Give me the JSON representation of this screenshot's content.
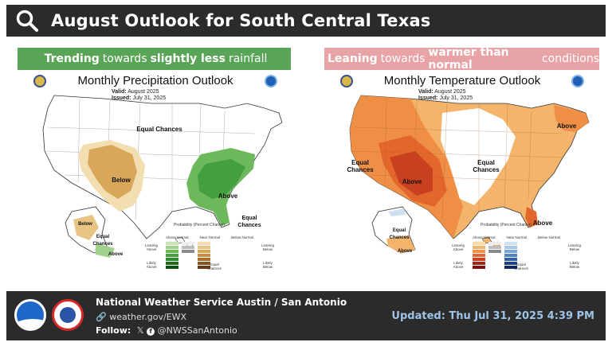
{
  "header": {
    "title": "August Outlook for South Central Texas",
    "icon": "search-icon"
  },
  "banners": {
    "precip": {
      "pre": "Trending",
      "mid": "towards",
      "bold": "slightly less",
      "post": "rainfall",
      "color": "#5aa457"
    },
    "temp": {
      "pre": "Leaning",
      "mid": "towards",
      "bold": "warmer than normal",
      "post": "conditions",
      "color": "#e8a3a6"
    }
  },
  "precip_map": {
    "title": "Monthly Precipitation Outlook",
    "valid": "Valid:",
    "valid_value": "August 2025",
    "issued": "Issued:",
    "issued_value": "July 31, 2025",
    "labels": [
      "Equal Chances",
      "Below",
      "Above",
      "Below",
      "Equal Chances",
      "Above",
      "Equal Chances"
    ],
    "legend": {
      "title": "Probability (Percent Chance)",
      "cols": [
        "Above Normal",
        "Near Normal",
        "Below Normal"
      ],
      "side_top": "Leaning Above",
      "side_mid": "Likely Above",
      "side_right_top": "Leaning Below",
      "side_right_mid": "Likely Below",
      "equal": "Equal Chances",
      "above_colors": [
        "#c8e6b5",
        "#9fd28a",
        "#6cb85b",
        "#43a03c",
        "#2e8a2a",
        "#1f6e1c",
        "#124d11"
      ],
      "below_colors": [
        "#f2deb0",
        "#e8c584",
        "#d9a75a",
        "#c98b3c",
        "#aa6c2a",
        "#8a5220",
        "#663a16"
      ]
    }
  },
  "temp_map": {
    "title": "Monthly Temperature Outlook",
    "valid": "Valid:",
    "valid_value": "August 2025",
    "issued": "Issued:",
    "issued_value": "July 31, 2025",
    "labels": [
      "Equal Chances",
      "Above",
      "Equal Chances",
      "Above",
      "Above",
      "Equal Chances",
      "Above"
    ],
    "legend": {
      "title": "Probability (Percent Chance)",
      "cols": [
        "Above Normal",
        "Near Normal",
        "Below Normal"
      ],
      "side_top": "Leaning Above",
      "side_mid": "Likely Above",
      "side_right_top": "Leaning Below",
      "side_right_mid": "Likely Below",
      "equal": "Equal Chances",
      "above_colors": [
        "#fbd9a8",
        "#f5b46b",
        "#ee8f45",
        "#e3672d",
        "#c9401f",
        "#a5241a",
        "#7a1212"
      ],
      "below_colors": [
        "#cfe0f2",
        "#a7c6e8",
        "#7aa6d8",
        "#4f83c2",
        "#2f61a6",
        "#1e4386",
        "#122a5e"
      ]
    }
  },
  "footer": {
    "org": "National Weather Service Austin / San Antonio",
    "web": "weather.gov/EWX",
    "follow_label": "Follow:",
    "social": "@NWSSanAntonio",
    "updated": "Updated: Thu Jul 31, 2025 4:39 PM"
  }
}
